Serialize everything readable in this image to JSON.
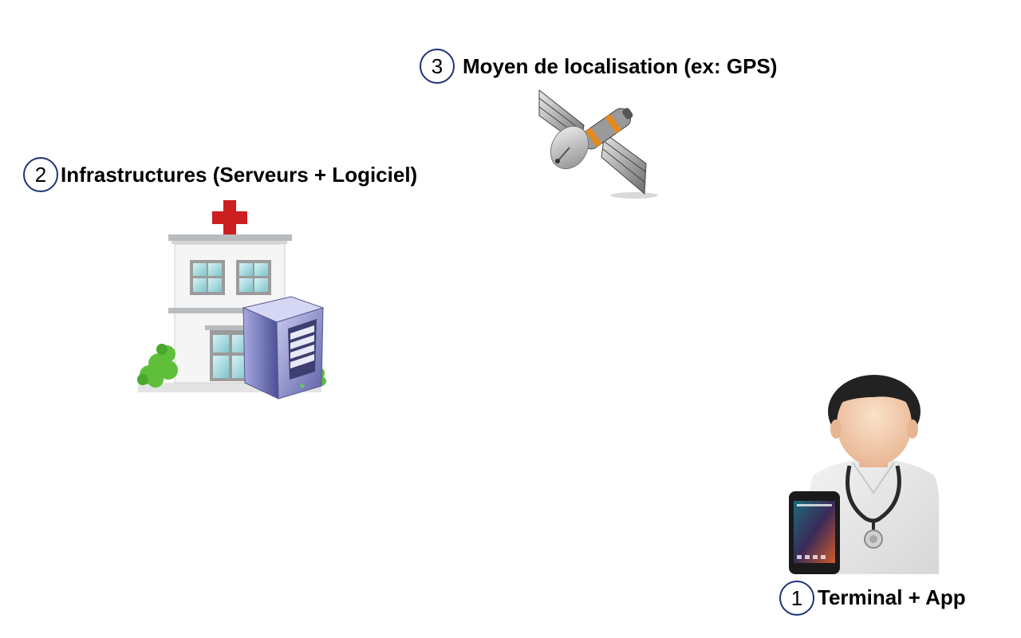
{
  "items": [
    {
      "number": "1",
      "label": "Terminal + App",
      "icon": "doctor-with-tablet-icon"
    },
    {
      "number": "2",
      "label": "Infrastructures (Serveurs + Logiciel)",
      "icon": "hospital-server-icon"
    },
    {
      "number": "3",
      "label": "Moyen de localisation (ex: GPS)",
      "icon": "satellite-icon"
    }
  ],
  "colors": {
    "badge_border": "#1f3275",
    "red_cross": "#cc1f1f",
    "server_body": "#8f93c8"
  }
}
